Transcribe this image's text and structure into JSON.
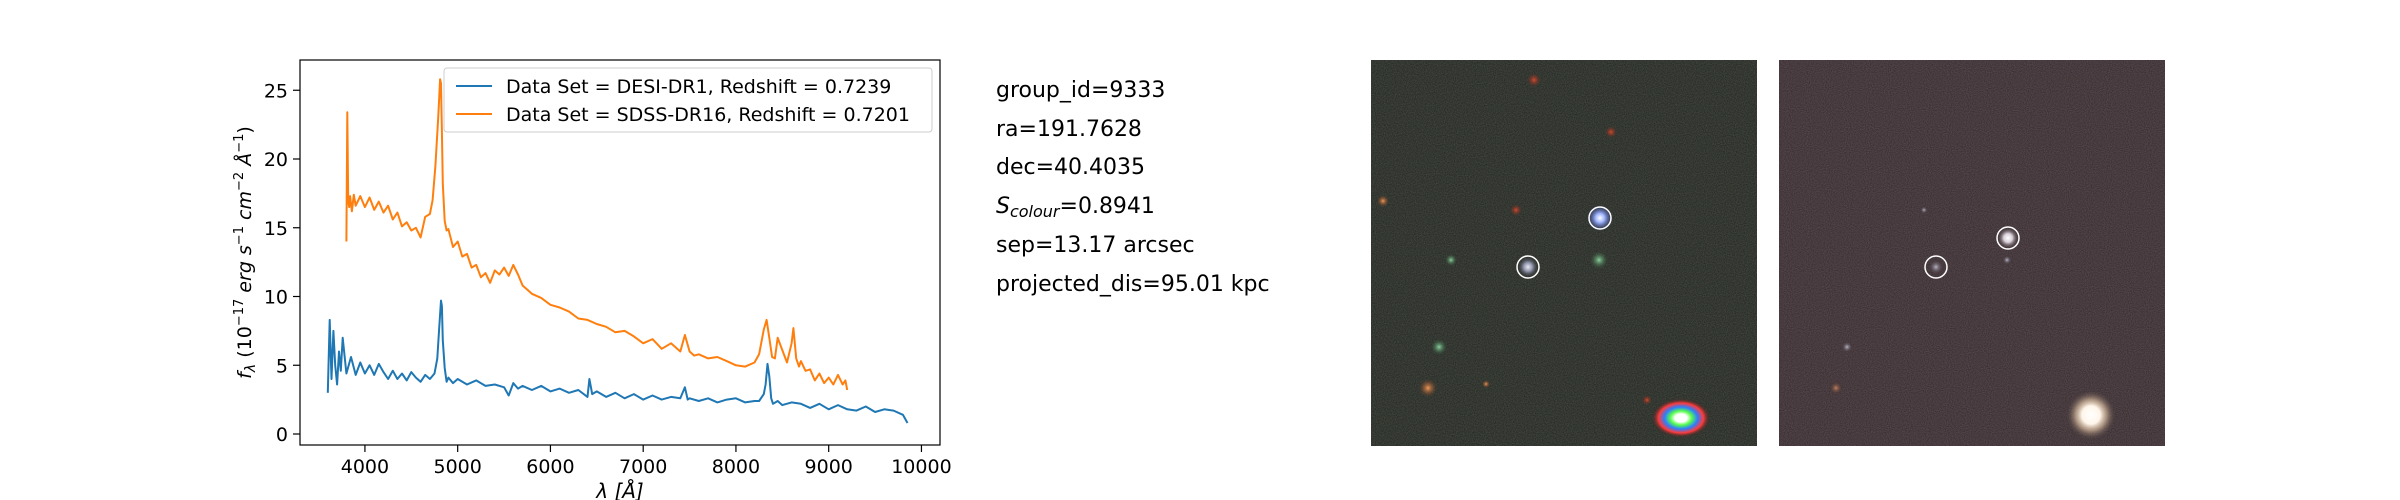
{
  "info": {
    "group_id": "group_id=9333",
    "ra": "ra=191.7628",
    "dec": "dec=40.4035",
    "s_colour_symbol": "S",
    "s_colour_subscript": "colour",
    "s_colour_value": "=0.8941",
    "sep": "sep=13.17 arcsec",
    "projected_dis": "projected_dis=95.01 kpc"
  },
  "images": [
    {
      "name": "legacy-survey-cutout",
      "background": "#1e211c"
    },
    {
      "name": "sdss-cutout",
      "background": "#302528"
    }
  ],
  "chart_data": {
    "type": "line",
    "xlabel": "λ [Å]",
    "ylabel": "f_λ (10^-17 erg s^-1 cm^-2 Å^-1)",
    "xlim": [
      3300,
      10200
    ],
    "ylim": [
      -0.8,
      27.2
    ],
    "xticks": [
      4000,
      5000,
      6000,
      7000,
      8000,
      9000,
      10000
    ],
    "yticks": [
      0,
      5,
      10,
      15,
      20,
      25
    ],
    "legend_position": "top-right",
    "grid": false,
    "series": [
      {
        "name": "Data Set = DESI-DR1, Redshift = 0.7239",
        "color": "#1f77b4",
        "x": [
          3600,
          3620,
          3640,
          3660,
          3680,
          3700,
          3720,
          3740,
          3760,
          3800,
          3850,
          3900,
          3950,
          4000,
          4050,
          4100,
          4150,
          4200,
          4250,
          4300,
          4350,
          4400,
          4450,
          4500,
          4550,
          4600,
          4650,
          4700,
          4750,
          4780,
          4800,
          4820,
          4830,
          4840,
          4860,
          4880,
          4900,
          4950,
          5000,
          5100,
          5200,
          5300,
          5400,
          5500,
          5550,
          5600,
          5650,
          5700,
          5800,
          5900,
          6000,
          6100,
          6200,
          6300,
          6400,
          6420,
          6450,
          6500,
          6600,
          6700,
          6800,
          6900,
          7000,
          7100,
          7200,
          7300,
          7400,
          7450,
          7480,
          7500,
          7600,
          7700,
          7800,
          7900,
          8000,
          8100,
          8200,
          8250,
          8300,
          8320,
          8340,
          8360,
          8380,
          8400,
          8450,
          8500,
          8600,
          8700,
          8800,
          8900,
          9000,
          9100,
          9200,
          9300,
          9400,
          9500,
          9600,
          9700,
          9800,
          9850
        ],
        "y": [
          3.0,
          8.3,
          4.0,
          7.5,
          5.0,
          3.6,
          6.0,
          4.6,
          7.0,
          4.4,
          5.6,
          4.3,
          5.2,
          4.4,
          5.0,
          4.3,
          5.1,
          4.5,
          4.0,
          4.6,
          4.0,
          4.4,
          3.9,
          4.5,
          4.1,
          3.8,
          4.3,
          4.0,
          4.4,
          5.5,
          7.6,
          9.7,
          9.3,
          6.8,
          4.8,
          3.8,
          4.1,
          3.7,
          4.0,
          3.6,
          3.9,
          3.5,
          3.6,
          3.4,
          2.8,
          3.7,
          3.3,
          3.5,
          3.2,
          3.5,
          3.1,
          3.3,
          3.0,
          3.2,
          2.7,
          4.0,
          2.9,
          3.1,
          2.7,
          3.0,
          2.6,
          2.9,
          2.5,
          2.8,
          2.5,
          2.7,
          2.6,
          3.4,
          2.5,
          2.6,
          2.4,
          2.6,
          2.3,
          2.5,
          2.6,
          2.3,
          2.4,
          2.4,
          2.9,
          3.6,
          5.1,
          4.2,
          2.6,
          2.2,
          2.4,
          2.1,
          2.3,
          2.2,
          1.9,
          2.2,
          1.8,
          2.1,
          1.8,
          1.7,
          2.0,
          1.6,
          1.8,
          1.7,
          1.4,
          0.8
        ]
      },
      {
        "name": "Data Set = SDSS-DR16, Redshift = 0.7201",
        "color": "#ff7f0e",
        "x": [
          3800,
          3810,
          3820,
          3830,
          3840,
          3860,
          3880,
          3900,
          3950,
          4000,
          4050,
          4100,
          4150,
          4200,
          4250,
          4300,
          4350,
          4400,
          4450,
          4500,
          4550,
          4600,
          4650,
          4700,
          4730,
          4760,
          4790,
          4810,
          4820,
          4830,
          4840,
          4860,
          4880,
          4900,
          4950,
          5000,
          5050,
          5100,
          5150,
          5200,
          5250,
          5300,
          5350,
          5400,
          5450,
          5500,
          5550,
          5600,
          5650,
          5700,
          5800,
          5900,
          6000,
          6100,
          6200,
          6300,
          6400,
          6500,
          6600,
          6700,
          6800,
          6900,
          7000,
          7100,
          7200,
          7300,
          7400,
          7450,
          7500,
          7550,
          7600,
          7700,
          7800,
          7900,
          8000,
          8100,
          8200,
          8250,
          8300,
          8330,
          8360,
          8390,
          8420,
          8450,
          8500,
          8550,
          8600,
          8620,
          8650,
          8680,
          8700,
          8750,
          8800,
          8850,
          8900,
          8950,
          9000,
          9050,
          9100,
          9150,
          9180,
          9200
        ],
        "y": [
          14.0,
          23.4,
          17.0,
          16.5,
          17.3,
          16.2,
          17.4,
          16.6,
          17.3,
          16.5,
          17.2,
          16.3,
          16.9,
          16.1,
          16.6,
          15.6,
          16.1,
          15.1,
          15.4,
          14.8,
          15.0,
          14.3,
          15.8,
          16.0,
          17.0,
          19.5,
          23.0,
          25.8,
          25.5,
          22.0,
          18.2,
          15.5,
          14.8,
          14.9,
          13.6,
          14.0,
          12.9,
          13.1,
          12.1,
          12.3,
          11.4,
          11.7,
          11.0,
          11.9,
          11.6,
          12.1,
          11.5,
          12.3,
          11.6,
          10.8,
          10.2,
          9.9,
          9.4,
          9.2,
          8.9,
          8.4,
          8.3,
          8.0,
          7.8,
          7.4,
          7.5,
          7.1,
          6.6,
          6.9,
          6.2,
          6.6,
          6.0,
          7.2,
          6.0,
          5.7,
          5.8,
          5.5,
          5.6,
          5.3,
          5.0,
          4.9,
          5.2,
          5.8,
          7.6,
          8.3,
          7.0,
          5.6,
          5.5,
          7.0,
          6.1,
          5.2,
          6.6,
          7.7,
          5.5,
          4.9,
          5.3,
          4.6,
          4.7,
          3.9,
          4.4,
          3.7,
          4.1,
          3.6,
          4.3,
          3.6,
          3.9,
          3.2
        ]
      }
    ]
  }
}
